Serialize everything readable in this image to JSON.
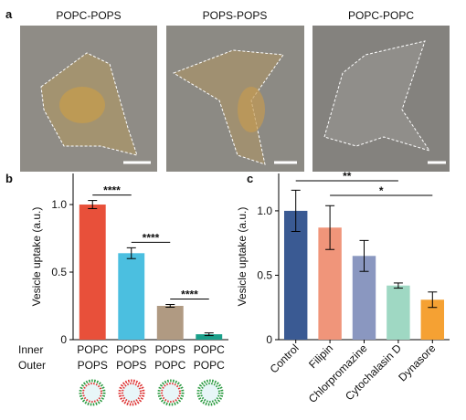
{
  "panel_labels": [
    "a",
    "b",
    "c"
  ],
  "images": [
    {
      "title": "POPC-POPS"
    },
    {
      "title": "POPS-POPS"
    },
    {
      "title": "POPC-POPC"
    }
  ],
  "chart_data": [
    {
      "type": "bar",
      "ylabel": "Vesicle uptake (a.u.)",
      "category_rows": [
        {
          "name": "Inner",
          "labels": [
            "POPC",
            "POPS",
            "POPS",
            "POPC"
          ]
        },
        {
          "name": "Outer",
          "labels": [
            "POPS",
            "POPS",
            "POPC",
            "POPC"
          ]
        }
      ],
      "values": [
        1.0,
        0.64,
        0.25,
        0.04
      ],
      "errors": [
        0.03,
        0.04,
        0.01,
        0.01
      ],
      "colors": [
        "#e8503a",
        "#4bbfe0",
        "#b09a82",
        "#1aa08a"
      ],
      "ylim": [
        0,
        1.23
      ],
      "yticks": [
        0,
        0.5,
        {
          "value": 1,
          "label": "1.0"
        }
      ],
      "annotations": [
        {
          "text": "****",
          "between": [
            0,
            1
          ]
        },
        {
          "text": "****",
          "between": [
            1,
            2
          ]
        },
        {
          "text": "****",
          "between": [
            2,
            3
          ]
        }
      ]
    },
    {
      "type": "bar",
      "ylabel": "Vesicle uptake (a.u.)",
      "categories": [
        "Control",
        "Filipin",
        "Chlorpromazine",
        "Cytochalasin D",
        "Dynasore"
      ],
      "values": [
        1.0,
        0.87,
        0.65,
        0.42,
        0.31
      ],
      "errors": [
        0.16,
        0.17,
        0.12,
        0.02,
        0.06
      ],
      "colors": [
        "#3a5a93",
        "#f0957a",
        "#8a97c0",
        "#9fd8c3",
        "#f5a133"
      ],
      "ylim": [
        0,
        1.29
      ],
      "yticks": [
        0,
        0.5,
        {
          "value": 1,
          "label": "1.0"
        }
      ],
      "annotations": [
        {
          "text": "**",
          "between": [
            0,
            3
          ]
        },
        {
          "text": "*",
          "between": [
            1,
            4
          ]
        }
      ]
    }
  ]
}
